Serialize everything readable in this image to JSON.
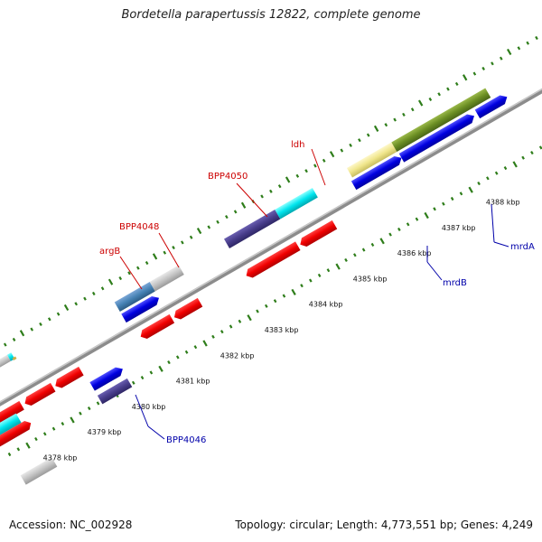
{
  "header": {
    "title": "Bordetella parapertussis 12822, complete genome"
  },
  "footer": {
    "accession": "Accession: NC_002928",
    "summary": "Topology: circular; Length: 4,773,551 bp; Genes: 4,249"
  },
  "colors": {
    "backbone": "#8c8c8c",
    "forward_tick": "#2e7d1a",
    "reverse_tick": "#2e7d1a",
    "red_label": "#cc0000",
    "blue_label": "#0000aa"
  },
  "scale": {
    "unit": "kbp",
    "ticks": [
      "4378 kbp",
      "4379 kbp",
      "4380 kbp",
      "4381 kbp",
      "4382 kbp",
      "4383 kbp",
      "4384 kbp",
      "4385 kbp",
      "4386 kbp",
      "4387 kbp",
      "4388 kbp"
    ]
  },
  "labels": [
    {
      "text": "ldh",
      "color": "red"
    },
    {
      "text": "BPP4050",
      "color": "red"
    },
    {
      "text": "BPP4048",
      "color": "red"
    },
    {
      "text": "argB",
      "color": "red"
    },
    {
      "text": "mrdA",
      "color": "blue"
    },
    {
      "text": "mrdB",
      "color": "blue"
    },
    {
      "text": "BPP4046",
      "color": "blue"
    }
  ]
}
